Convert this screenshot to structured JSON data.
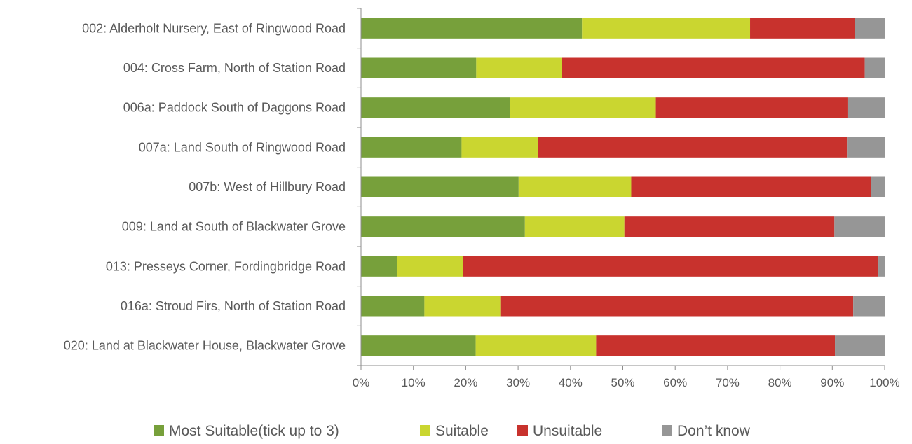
{
  "chart_data": {
    "type": "bar",
    "orientation": "horizontal",
    "stacked": "percent",
    "categories": [
      "002: Alderholt Nursery, East of Ringwood Road",
      "004: Cross Farm, North of Station Road",
      "006a: Paddock South of Daggons Road",
      "007a: Land South of Ringwood Road",
      "007b: West of Hillbury Road",
      "009: Land at South of Blackwater Grove",
      "013: Presseys Corner, Fordingbridge Road",
      "016a: Stroud Firs, North of Station Road",
      "020: Land at Blackwater House, Blackwater Grove"
    ],
    "series": [
      {
        "name": "Most Suitable(tick up to 3)",
        "color": "#77a03b",
        "values": [
          42.2,
          22.0,
          28.5,
          19.2,
          30.1,
          31.3,
          6.9,
          12.1,
          21.9
        ]
      },
      {
        "name": "Suitable",
        "color": "#cad630",
        "values": [
          32.1,
          16.3,
          27.8,
          14.6,
          21.5,
          19.0,
          12.6,
          14.5,
          23.0
        ]
      },
      {
        "name": "Unsuitable",
        "color": "#c8322d",
        "values": [
          20.0,
          57.9,
          36.6,
          59.0,
          45.8,
          40.1,
          79.3,
          67.4,
          45.6
        ]
      },
      {
        "name": "Don’t know",
        "color": "#969696",
        "values": [
          5.7,
          3.8,
          7.1,
          7.2,
          2.6,
          9.6,
          1.2,
          6.0,
          9.5
        ]
      }
    ],
    "xticks": [
      "0%",
      "10%",
      "20%",
      "30%",
      "40%",
      "50%",
      "60%",
      "70%",
      "80%",
      "90%",
      "100%"
    ],
    "xlim": [
      0,
      100
    ],
    "title": "",
    "xlabel": "",
    "ylabel": "",
    "grid": false,
    "legend_position": "bottom"
  }
}
